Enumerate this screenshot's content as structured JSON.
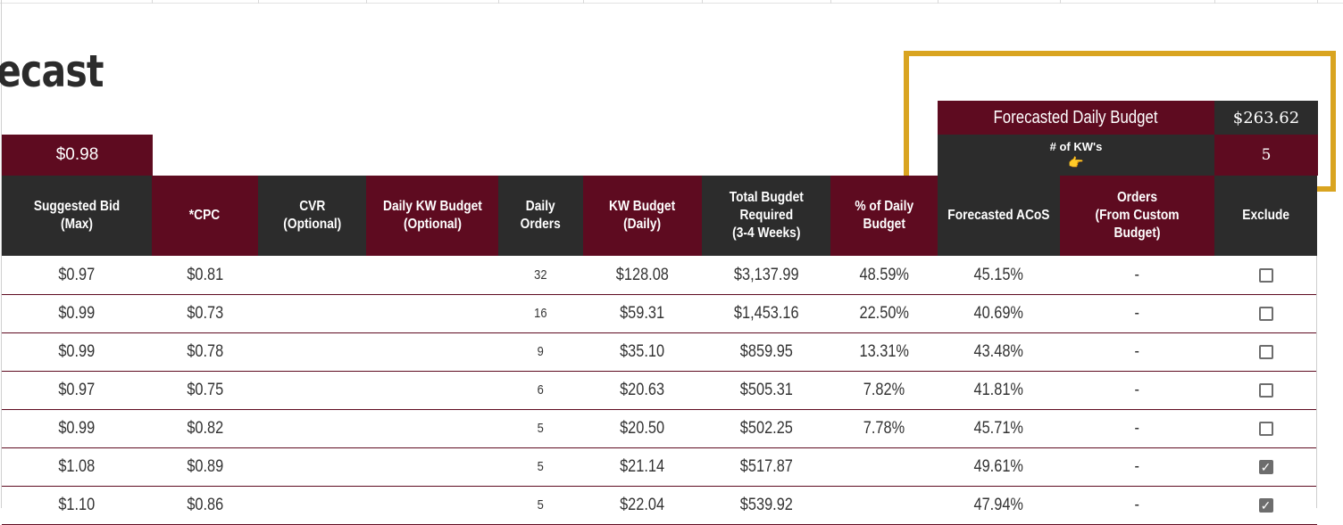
{
  "title": "ecast",
  "suggested_bid_top": "$0.98",
  "summary": {
    "forecasted_daily_budget_label": "Forecasted Daily Budget",
    "forecasted_daily_budget_value": "$263.62",
    "kw_count_label": "# of KW's",
    "kw_count_value": "5",
    "hand_icon": "👉"
  },
  "headers": [
    "Suggested Bid\n(Max)",
    "*CPC",
    "CVR\n(Optional)",
    "Daily KW Budget\n(Optional)",
    "Daily\nOrders",
    "KW Budget\n(Daily)",
    "Total Bugdet\nRequired\n(3-4 Weeks)",
    "% of Daily\nBudget",
    "Forecasted ACoS",
    "Orders\n(From Custom Budget)",
    "Exclude"
  ],
  "rows": [
    {
      "bid": "$0.97",
      "cpc": "$0.81",
      "cvr": "",
      "dkb": "",
      "orders": "32",
      "kwb": "$128.08",
      "total": "$3,137.99",
      "pct": "48.59%",
      "acos": "45.15%",
      "custom": "-",
      "exclude": false
    },
    {
      "bid": "$0.99",
      "cpc": "$0.73",
      "cvr": "",
      "dkb": "",
      "orders": "16",
      "kwb": "$59.31",
      "total": "$1,453.16",
      "pct": "22.50%",
      "acos": "40.69%",
      "custom": "-",
      "exclude": false
    },
    {
      "bid": "$0.99",
      "cpc": "$0.78",
      "cvr": "",
      "dkb": "",
      "orders": "9",
      "kwb": "$35.10",
      "total": "$859.95",
      "pct": "13.31%",
      "acos": "43.48%",
      "custom": "-",
      "exclude": false
    },
    {
      "bid": "$0.97",
      "cpc": "$0.75",
      "cvr": "",
      "dkb": "",
      "orders": "6",
      "kwb": "$20.63",
      "total": "$505.31",
      "pct": "7.82%",
      "acos": "41.81%",
      "custom": "-",
      "exclude": false
    },
    {
      "bid": "$0.99",
      "cpc": "$0.82",
      "cvr": "",
      "dkb": "",
      "orders": "5",
      "kwb": "$20.50",
      "total": "$502.25",
      "pct": "7.78%",
      "acos": "45.71%",
      "custom": "-",
      "exclude": false
    },
    {
      "bid": "$1.08",
      "cpc": "$0.89",
      "cvr": "",
      "dkb": "",
      "orders": "5",
      "kwb": "$21.14",
      "total": "$517.87",
      "pct": "",
      "acos": "49.61%",
      "custom": "-",
      "exclude": true
    },
    {
      "bid": "$1.10",
      "cpc": "$0.86",
      "cvr": "",
      "dkb": "",
      "orders": "5",
      "kwb": "$22.04",
      "total": "$539.92",
      "pct": "",
      "acos": "47.94%",
      "custom": "-",
      "exclude": true
    }
  ],
  "colors": {
    "maroon": "#5e0b20",
    "dark": "#2c2c2c",
    "highlight": "#d9a420"
  }
}
